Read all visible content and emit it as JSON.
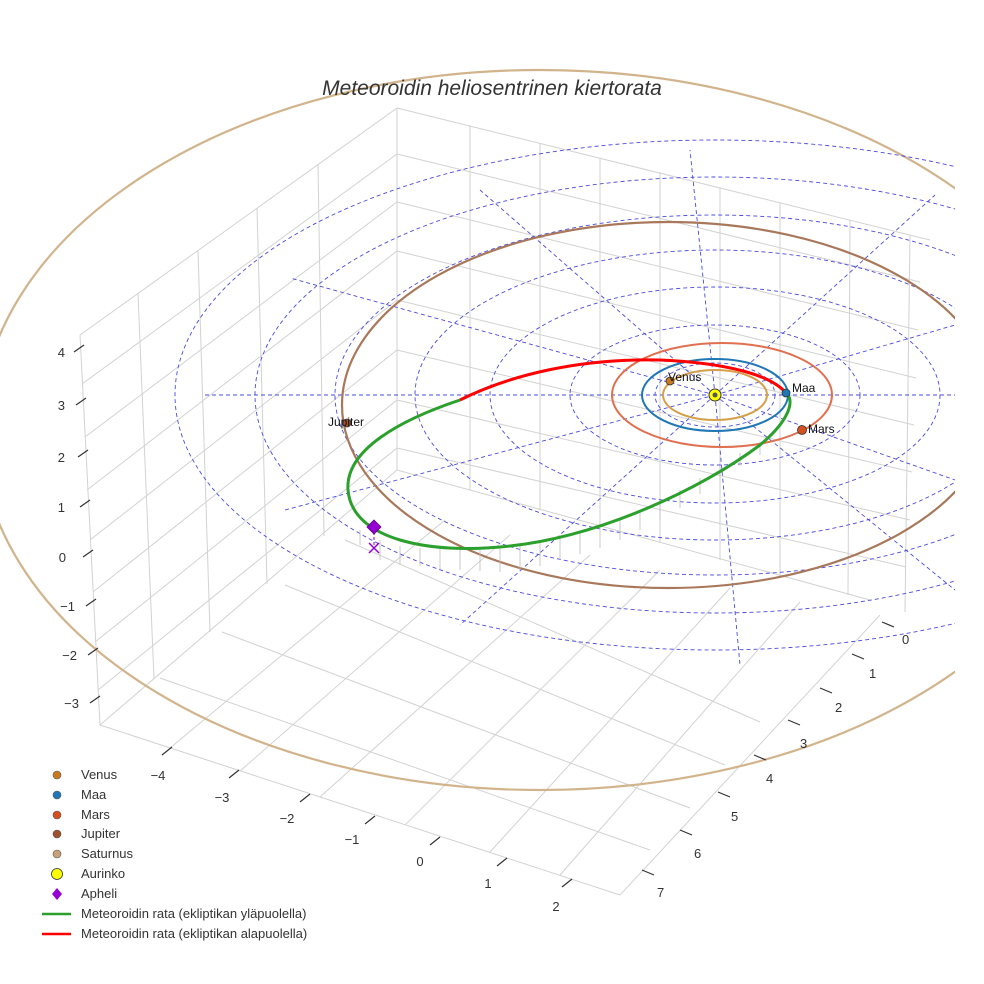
{
  "chart_data": {
    "type": "scatter3d",
    "title": "Meteoroidin heliosentrinen kiertorata",
    "axes": {
      "x": {
        "ticks": [
          "−4",
          "−3",
          "−2",
          "−1",
          "0",
          "1",
          "2"
        ]
      },
      "y": {
        "ticks": [
          "0",
          "1",
          "2",
          "3",
          "4",
          "5",
          "6",
          "7"
        ]
      },
      "z": {
        "ticks": [
          "4",
          "3",
          "2",
          "1",
          "0",
          "−1",
          "−2",
          "−3"
        ]
      }
    },
    "legend": [
      {
        "label": "Venus",
        "symbol": "circle",
        "color": "#c97a1e"
      },
      {
        "label": "Maa",
        "symbol": "circle",
        "color": "#1f77b4"
      },
      {
        "label": "Mars",
        "symbol": "circle",
        "color": "#d2511f"
      },
      {
        "label": "Jupiter",
        "symbol": "circle",
        "color": "#a0522d"
      },
      {
        "label": "Saturnus",
        "symbol": "circle",
        "color": "#c8a07a"
      },
      {
        "label": "Aurinko",
        "symbol": "circle",
        "color": "#ffff00"
      },
      {
        "label": "Apheli",
        "symbol": "diamond",
        "color": "#9400d3"
      },
      {
        "label": "Meteoroidin rata (ekliptikan yläpuolella)",
        "symbol": "line",
        "color": "#2ca02c"
      },
      {
        "label": "Meteoroidin rata (ekliptikan alapuolella)",
        "symbol": "line",
        "color": "#ff0000"
      }
    ],
    "planet_labels": [
      "Venus",
      "Maa",
      "Mars",
      "Jupiter"
    ],
    "colors": {
      "venus_orbit": "#d4a04a",
      "earth_orbit": "#1f77b4",
      "mars_orbit": "#e07050",
      "jupiter_orbit": "#a9785a",
      "saturn_orbit": "#d2b48c",
      "orbit_above": "#2ca02c",
      "orbit_below": "#ff0000",
      "ecliptic_grid": "#4a4ae0",
      "box_grid": "#d0d0d0"
    }
  }
}
